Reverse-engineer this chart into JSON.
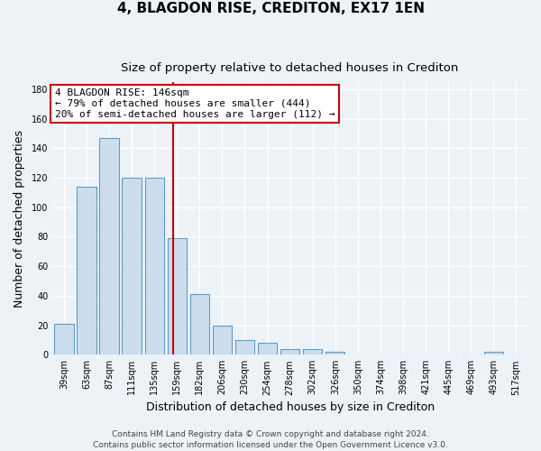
{
  "title": "4, BLAGDON RISE, CREDITON, EX17 1EN",
  "subtitle": "Size of property relative to detached houses in Crediton",
  "xlabel": "Distribution of detached houses by size in Crediton",
  "ylabel": "Number of detached properties",
  "categories": [
    "39sqm",
    "63sqm",
    "87sqm",
    "111sqm",
    "135sqm",
    "159sqm",
    "182sqm",
    "206sqm",
    "230sqm",
    "254sqm",
    "278sqm",
    "302sqm",
    "326sqm",
    "350sqm",
    "374sqm",
    "398sqm",
    "421sqm",
    "445sqm",
    "469sqm",
    "493sqm",
    "517sqm"
  ],
  "values": [
    21,
    114,
    147,
    120,
    120,
    79,
    41,
    20,
    10,
    8,
    4,
    4,
    2,
    0,
    0,
    0,
    0,
    0,
    0,
    2,
    0
  ],
  "bar_color": "#ccdded",
  "bar_edge_color": "#5a9fc8",
  "vline_x_index": 4.82,
  "vline_color": "#cc0000",
  "annotation_line1": "4 BLAGDON RISE: 146sqm",
  "annotation_line2": "← 79% of detached houses are smaller (444)",
  "annotation_line3": "20% of semi-detached houses are larger (112) →",
  "annotation_box_facecolor": "#ffffff",
  "annotation_box_edgecolor": "#cc0000",
  "ylim": [
    0,
    185
  ],
  "yticks": [
    0,
    20,
    40,
    60,
    80,
    100,
    120,
    140,
    160,
    180
  ],
  "footer_line1": "Contains HM Land Registry data © Crown copyright and database right 2024.",
  "footer_line2": "Contains public sector information licensed under the Open Government Licence v3.0.",
  "background_color": "#edf2f7",
  "plot_bg_color": "#edf2f7",
  "grid_color": "#ffffff",
  "title_fontsize": 11,
  "subtitle_fontsize": 9.5,
  "axis_label_fontsize": 9,
  "tick_fontsize": 7,
  "annotation_fontsize": 8,
  "footer_fontsize": 6.5
}
